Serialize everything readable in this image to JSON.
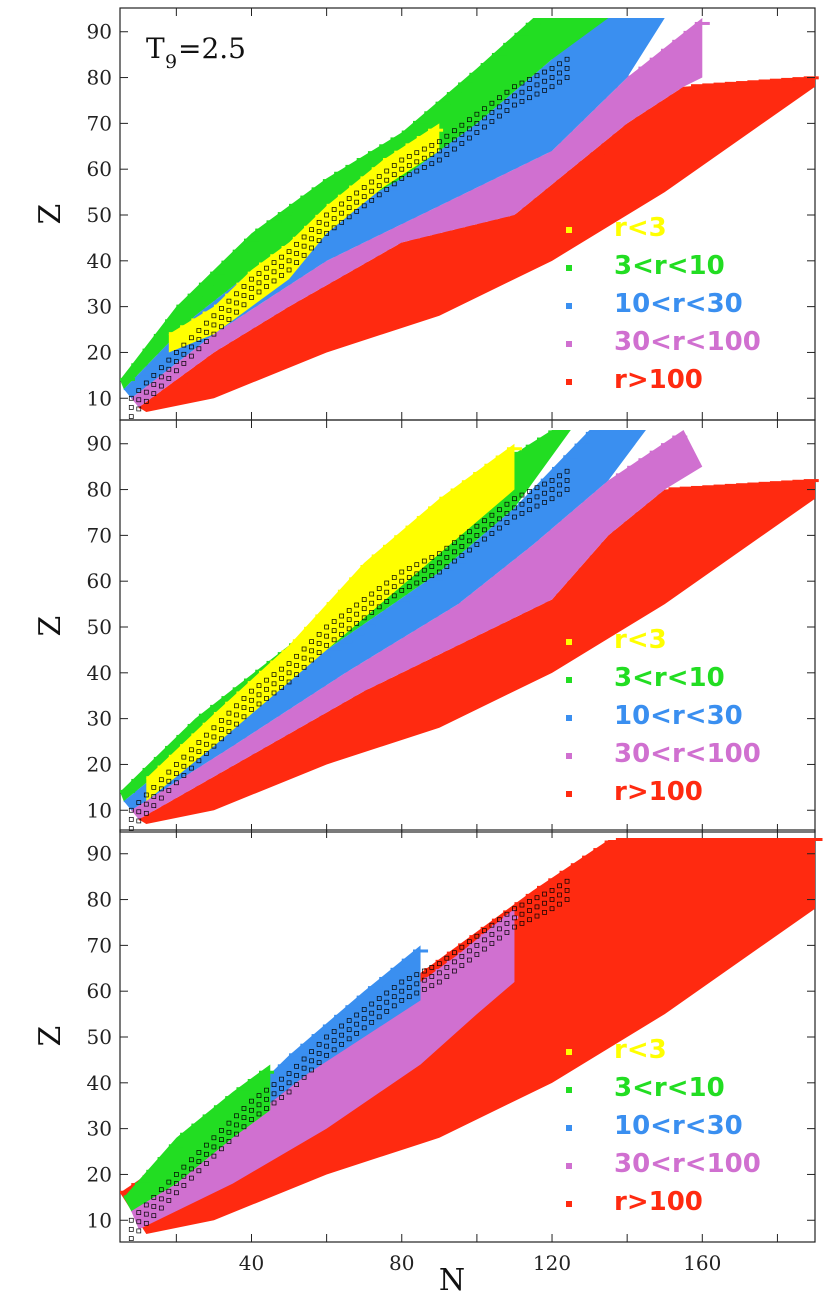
{
  "chart_data": {
    "type": "heatmap",
    "xlabel": "N",
    "ylabel": "Z",
    "xlim": [
      5,
      190
    ],
    "ylim": [
      7,
      93
    ],
    "x_ticks": [
      40,
      80,
      120,
      160
    ],
    "y_ticks": [
      10,
      20,
      30,
      40,
      50,
      60,
      70,
      80,
      90
    ],
    "panel_count": 3,
    "legend_placement": "lower-right",
    "categories": [
      "r<3",
      "3<r<10",
      "10<r<30",
      "30<r<100",
      "r>100"
    ],
    "category_colors": [
      "#ffff00",
      "#22dd22",
      "#3a8ff0",
      "#d070d0",
      "#ff2a10"
    ],
    "stable_marker": "open black squares",
    "panels": [
      {
        "label_main": "T",
        "label_sub": "9",
        "label_rest": "=2.5",
        "bands": [
          {
            "category": "r>100",
            "upper": [
              [
                10,
                8
              ],
              [
                30,
                20
              ],
              [
                50,
                30
              ],
              [
                80,
                44
              ],
              [
                110,
                50
              ],
              [
                125,
                60
              ],
              [
                140,
                70
              ],
              [
                155,
                78
              ],
              [
                190,
                80
              ]
            ],
            "lower": [
              [
                12,
                7
              ],
              [
                30,
                10
              ],
              [
                60,
                20
              ],
              [
                90,
                28
              ],
              [
                120,
                40
              ],
              [
                150,
                55
              ],
              [
                190,
                78
              ]
            ]
          },
          {
            "category": "30<r<100",
            "upper": [
              [
                8,
                10
              ],
              [
                30,
                24
              ],
              [
                60,
                40
              ],
              [
                90,
                52
              ],
              [
                120,
                64
              ],
              [
                140,
                80
              ],
              [
                160,
                93
              ]
            ],
            "lower": [
              [
                10,
                8
              ],
              [
                30,
                20
              ],
              [
                50,
                30
              ],
              [
                80,
                44
              ],
              [
                110,
                50
              ],
              [
                125,
                60
              ],
              [
                140,
                70
              ],
              [
                155,
                78
              ],
              [
                160,
                80
              ]
            ]
          },
          {
            "category": "10<r<30",
            "upper": [
              [
                6,
                12
              ],
              [
                25,
                28
              ],
              [
                50,
                44
              ],
              [
                80,
                58
              ],
              [
                100,
                70
              ],
              [
                120,
                84
              ],
              [
                130,
                93
              ]
            ],
            "lower": [
              [
                8,
                10
              ],
              [
                30,
                24
              ],
              [
                60,
                40
              ],
              [
                90,
                52
              ],
              [
                120,
                64
              ],
              [
                140,
                80
              ],
              [
                150,
                93
              ]
            ]
          },
          {
            "category": "3<r<10",
            "upper": [
              [
                5,
                14
              ],
              [
                20,
                30
              ],
              [
                40,
                46
              ],
              [
                60,
                58
              ],
              [
                80,
                68
              ],
              [
                100,
                82
              ],
              [
                115,
                93
              ]
            ],
            "lower": [
              [
                6,
                12
              ],
              [
                25,
                28
              ],
              [
                50,
                44
              ],
              [
                80,
                58
              ],
              [
                100,
                70
              ],
              [
                120,
                84
              ],
              [
                135,
                93
              ]
            ]
          },
          {
            "category": "r<3",
            "upper": [
              [
                18,
                24
              ],
              [
                30,
                30
              ],
              [
                40,
                38
              ],
              [
                50,
                44
              ],
              [
                60,
                52
              ],
              [
                75,
                62
              ],
              [
                90,
                70
              ]
            ],
            "lower": [
              [
                18,
                20
              ],
              [
                30,
                24
              ],
              [
                40,
                30
              ],
              [
                50,
                36
              ],
              [
                60,
                46
              ],
              [
                75,
                56
              ],
              [
                90,
                64
              ]
            ]
          }
        ]
      },
      {
        "label_main": "",
        "label_sub": "",
        "label_rest": "",
        "bands": [
          {
            "category": "r>100",
            "upper": [
              [
                10,
                8
              ],
              [
                40,
                22
              ],
              [
                70,
                36
              ],
              [
                100,
                48
              ],
              [
                120,
                56
              ],
              [
                135,
                70
              ],
              [
                150,
                80
              ],
              [
                190,
                82
              ]
            ],
            "lower": [
              [
                12,
                7
              ],
              [
                30,
                10
              ],
              [
                60,
                20
              ],
              [
                90,
                28
              ],
              [
                120,
                40
              ],
              [
                150,
                55
              ],
              [
                190,
                78
              ]
            ]
          },
          {
            "category": "30<r<100",
            "upper": [
              [
                8,
                10
              ],
              [
                35,
                24
              ],
              [
                65,
                40
              ],
              [
                95,
                55
              ],
              [
                115,
                68
              ],
              [
                135,
                82
              ],
              [
                155,
                93
              ]
            ],
            "lower": [
              [
                10,
                8
              ],
              [
                40,
                22
              ],
              [
                70,
                36
              ],
              [
                100,
                48
              ],
              [
                120,
                56
              ],
              [
                135,
                70
              ],
              [
                150,
                80
              ],
              [
                160,
                85
              ]
            ]
          },
          {
            "category": "10<r<30",
            "upper": [
              [
                6,
                12
              ],
              [
                30,
                28
              ],
              [
                60,
                45
              ],
              [
                90,
                62
              ],
              [
                110,
                76
              ],
              [
                130,
                93
              ]
            ],
            "lower": [
              [
                8,
                10
              ],
              [
                35,
                24
              ],
              [
                65,
                40
              ],
              [
                95,
                55
              ],
              [
                115,
                68
              ],
              [
                135,
                82
              ],
              [
                145,
                93
              ]
            ]
          },
          {
            "category": "3<r<10",
            "upper": [
              [
                5,
                14
              ],
              [
                25,
                30
              ],
              [
                50,
                46
              ],
              [
                75,
                64
              ],
              [
                95,
                80
              ],
              [
                120,
                93
              ]
            ],
            "lower": [
              [
                6,
                12
              ],
              [
                30,
                28
              ],
              [
                60,
                45
              ],
              [
                90,
                62
              ],
              [
                110,
                76
              ],
              [
                125,
                93
              ]
            ]
          },
          {
            "category": "r<3",
            "upper": [
              [
                12,
                17
              ],
              [
                30,
                31
              ],
              [
                50,
                46
              ],
              [
                70,
                64
              ],
              [
                90,
                78
              ],
              [
                110,
                90
              ]
            ],
            "lower": [
              [
                12,
                12
              ],
              [
                30,
                24
              ],
              [
                50,
                38
              ],
              [
                70,
                52
              ],
              [
                90,
                66
              ],
              [
                110,
                80
              ]
            ]
          }
        ]
      },
      {
        "label_main": "",
        "label_sub": "",
        "label_rest": "",
        "bands": [
          {
            "category": "r>100",
            "upper": [
              [
                5,
                16
              ],
              [
                30,
                30
              ],
              [
                55,
                44
              ],
              [
                75,
                58
              ],
              [
                95,
                70
              ],
              [
                115,
                82
              ],
              [
                135,
                93
              ],
              [
                190,
                93
              ]
            ],
            "lower": [
              [
                12,
                7
              ],
              [
                30,
                10
              ],
              [
                60,
                20
              ],
              [
                90,
                28
              ],
              [
                120,
                40
              ],
              [
                150,
                55
              ],
              [
                190,
                78
              ]
            ]
          },
          {
            "category": "30<r<100",
            "upper": [
              [
                8,
                12
              ],
              [
                30,
                26
              ],
              [
                55,
                42
              ],
              [
                75,
                56
              ],
              [
                95,
                68
              ],
              [
                110,
                78
              ]
            ],
            "lower": [
              [
                10,
                8
              ],
              [
                35,
                18
              ],
              [
                60,
                30
              ],
              [
                85,
                44
              ],
              [
                100,
                55
              ],
              [
                110,
                62
              ]
            ]
          },
          {
            "category": "10<r<30",
            "upper": [
              [
                8,
                14
              ],
              [
                30,
                30
              ],
              [
                50,
                46
              ],
              [
                70,
                60
              ],
              [
                85,
                70
              ]
            ],
            "lower": [
              [
                8,
                12
              ],
              [
                30,
                26
              ],
              [
                55,
                42
              ],
              [
                70,
                50
              ],
              [
                85,
                58
              ]
            ]
          },
          {
            "category": "3<r<10",
            "upper": [
              [
                6,
                15
              ],
              [
                20,
                28
              ],
              [
                35,
                38
              ],
              [
                45,
                44
              ]
            ],
            "lower": [
              [
                8,
                12
              ],
              [
                20,
                18
              ],
              [
                35,
                28
              ],
              [
                45,
                34
              ]
            ]
          }
        ]
      }
    ]
  }
}
